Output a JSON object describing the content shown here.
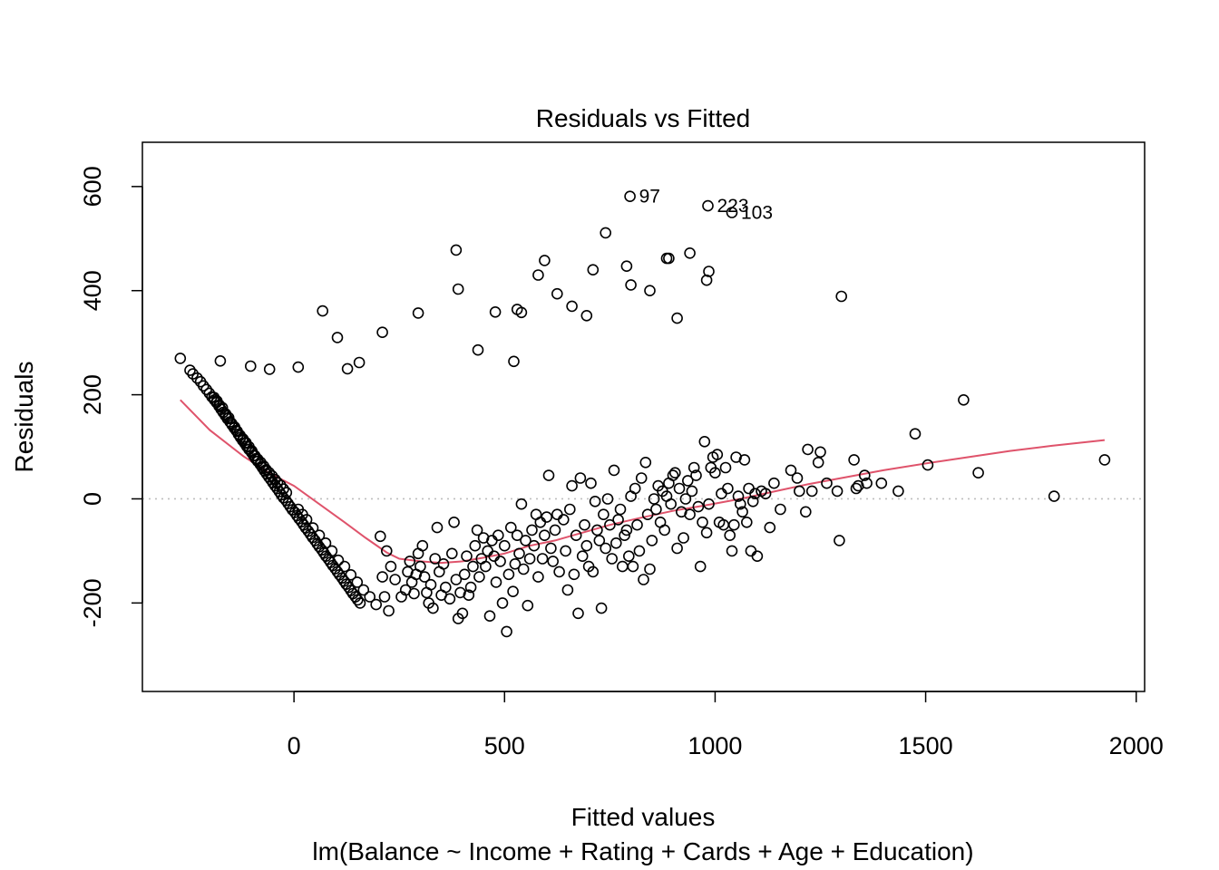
{
  "chart_data": {
    "type": "scatter",
    "title": "Residuals vs Fitted",
    "xlabel": "Fitted values",
    "sublabel": "lm(Balance ~ Income + Rating + Cards + Age + Education)",
    "ylabel": "Residuals",
    "xlim": [
      -360,
      2020
    ],
    "ylim": [
      -370,
      685
    ],
    "xticks": [
      0,
      500,
      1000,
      1500,
      2000
    ],
    "xtick_labels": [
      "0",
      "500",
      "1000",
      "1500",
      "2000"
    ],
    "yticks": [
      -200,
      0,
      200,
      400,
      600
    ],
    "ytick_labels": [
      "-200",
      "0",
      "200",
      "400",
      "600"
    ],
    "grid": false,
    "reference_line_y": 0,
    "colors": {
      "points": "#000000",
      "smooth": "#DF536B",
      "reference": "#BEBEBE"
    },
    "point_labels": [
      {
        "text": "97",
        "x": 798,
        "y": 581
      },
      {
        "text": "223",
        "x": 983,
        "y": 563
      },
      {
        "text": "103",
        "x": 1040,
        "y": 550
      }
    ],
    "points": [
      [
        -270,
        270
      ],
      [
        -247,
        247
      ],
      [
        -240,
        240
      ],
      [
        -230,
        232
      ],
      [
        -222,
        225
      ],
      [
        -215,
        217
      ],
      [
        -208,
        210
      ],
      [
        -201,
        203
      ],
      [
        -195,
        196
      ],
      [
        -189,
        190
      ],
      [
        -184,
        185
      ],
      [
        -178,
        178
      ],
      [
        -173,
        172
      ],
      [
        -168,
        166
      ],
      [
        -163,
        160
      ],
      [
        -158,
        154
      ],
      [
        -152,
        148
      ],
      [
        -147,
        142
      ],
      [
        -142,
        136
      ],
      [
        -137,
        131
      ],
      [
        -132,
        124
      ],
      [
        -127,
        118
      ],
      [
        -122,
        112
      ],
      [
        -117,
        107
      ],
      [
        -112,
        101
      ],
      [
        -107,
        95
      ],
      [
        -101,
        89
      ],
      [
        -96,
        83
      ],
      [
        -91,
        77
      ],
      [
        -86,
        72
      ],
      [
        -80,
        66
      ],
      [
        -75,
        60
      ],
      [
        -70,
        54
      ],
      [
        -65,
        48
      ],
      [
        -60,
        42
      ],
      [
        -55,
        37
      ],
      [
        -50,
        31
      ],
      [
        -45,
        25
      ],
      [
        -40,
        20
      ],
      [
        -35,
        14
      ],
      [
        -30,
        8
      ],
      [
        -25,
        2
      ],
      [
        -19,
        -3
      ],
      [
        -14,
        -9
      ],
      [
        -9,
        -15
      ],
      [
        -4,
        -21
      ],
      [
        2,
        -26
      ],
      [
        7,
        -32
      ],
      [
        12,
        -38
      ],
      [
        18,
        -44
      ],
      [
        23,
        -50
      ],
      [
        28,
        -56
      ],
      [
        34,
        -62
      ],
      [
        39,
        -68
      ],
      [
        44,
        -74
      ],
      [
        50,
        -80
      ],
      [
        55,
        -86
      ],
      [
        60,
        -92
      ],
      [
        66,
        -98
      ],
      [
        71,
        -104
      ],
      [
        76,
        -110
      ],
      [
        82,
        -116
      ],
      [
        87,
        -122
      ],
      [
        92,
        -128
      ],
      [
        98,
        -134
      ],
      [
        103,
        -140
      ],
      [
        108,
        -146
      ],
      [
        114,
        -152
      ],
      [
        119,
        -158
      ],
      [
        124,
        -164
      ],
      [
        130,
        -170
      ],
      [
        135,
        -176
      ],
      [
        140,
        -182
      ],
      [
        146,
        -188
      ],
      [
        151,
        -194
      ],
      [
        157,
        -200
      ],
      [
        -190,
        195
      ],
      [
        -183,
        188
      ],
      [
        -177,
        180
      ],
      [
        -170,
        175
      ],
      [
        -162,
        163
      ],
      [
        -155,
        156
      ],
      [
        -148,
        145
      ],
      [
        -141,
        138
      ],
      [
        -135,
        130
      ],
      [
        -128,
        122
      ],
      [
        -121,
        115
      ],
      [
        -114,
        108
      ],
      [
        -107,
        100
      ],
      [
        -100,
        92
      ],
      [
        -93,
        83
      ],
      [
        -86,
        76
      ],
      [
        -79,
        70
      ],
      [
        -72,
        63
      ],
      [
        -66,
        56
      ],
      [
        -59,
        50
      ],
      [
        -52,
        44
      ],
      [
        -45,
        37
      ],
      [
        -39,
        31
      ],
      [
        -32,
        26
      ],
      [
        -25,
        19
      ],
      [
        -18,
        12
      ],
      [
        10,
        -20
      ],
      [
        20,
        -30
      ],
      [
        30,
        -40
      ],
      [
        45,
        -56
      ],
      [
        60,
        -70
      ],
      [
        75,
        -85
      ],
      [
        90,
        -100
      ],
      [
        105,
        -118
      ],
      [
        120,
        -130
      ],
      [
        135,
        -146
      ],
      [
        150,
        -160
      ],
      [
        165,
        -175
      ],
      [
        180,
        -188
      ],
      [
        195,
        -203
      ],
      [
        -175,
        265
      ],
      [
        -103,
        255
      ],
      [
        -58,
        249
      ],
      [
        10,
        253
      ],
      [
        68,
        361
      ],
      [
        103,
        310
      ],
      [
        127,
        250
      ],
      [
        155,
        262
      ],
      [
        210,
        320
      ],
      [
        295,
        357
      ],
      [
        385,
        478
      ],
      [
        390,
        403
      ],
      [
        437,
        286
      ],
      [
        478,
        359
      ],
      [
        522,
        264
      ],
      [
        530,
        364
      ],
      [
        540,
        358
      ],
      [
        580,
        430
      ],
      [
        595,
        458
      ],
      [
        625,
        394
      ],
      [
        660,
        370
      ],
      [
        695,
        352
      ],
      [
        710,
        440
      ],
      [
        740,
        511
      ],
      [
        790,
        447
      ],
      [
        800,
        411
      ],
      [
        845,
        400
      ],
      [
        885,
        462
      ],
      [
        890,
        462
      ],
      [
        910,
        347
      ],
      [
        940,
        472
      ],
      [
        980,
        420
      ],
      [
        985,
        437
      ],
      [
        1300,
        389
      ],
      [
        798,
        581
      ],
      [
        983,
        563
      ],
      [
        1040,
        550
      ],
      [
        205,
        -72
      ],
      [
        210,
        -150
      ],
      [
        215,
        -188
      ],
      [
        220,
        -100
      ],
      [
        225,
        -215
      ],
      [
        230,
        -130
      ],
      [
        240,
        -155
      ],
      [
        255,
        -188
      ],
      [
        265,
        -175
      ],
      [
        270,
        -140
      ],
      [
        275,
        -120
      ],
      [
        280,
        -160
      ],
      [
        285,
        -182
      ],
      [
        290,
        -145
      ],
      [
        295,
        -105
      ],
      [
        300,
        -130
      ],
      [
        305,
        -90
      ],
      [
        310,
        -150
      ],
      [
        315,
        -180
      ],
      [
        320,
        -200
      ],
      [
        325,
        -165
      ],
      [
        330,
        -210
      ],
      [
        335,
        -115
      ],
      [
        340,
        -55
      ],
      [
        345,
        -140
      ],
      [
        350,
        -185
      ],
      [
        355,
        -125
      ],
      [
        360,
        -170
      ],
      [
        370,
        -192
      ],
      [
        375,
        -105
      ],
      [
        380,
        -45
      ],
      [
        385,
        -155
      ],
      [
        390,
        -230
      ],
      [
        395,
        -180
      ],
      [
        400,
        -220
      ],
      [
        405,
        -145
      ],
      [
        410,
        -110
      ],
      [
        415,
        -185
      ],
      [
        420,
        -170
      ],
      [
        425,
        -130
      ],
      [
        430,
        -90
      ],
      [
        435,
        -60
      ],
      [
        440,
        -150
      ],
      [
        445,
        -115
      ],
      [
        450,
        -75
      ],
      [
        455,
        -130
      ],
      [
        460,
        -100
      ],
      [
        465,
        -225
      ],
      [
        470,
        -80
      ],
      [
        475,
        -110
      ],
      [
        480,
        -160
      ],
      [
        485,
        -70
      ],
      [
        490,
        -120
      ],
      [
        495,
        -200
      ],
      [
        500,
        -90
      ],
      [
        505,
        -255
      ],
      [
        510,
        -145
      ],
      [
        515,
        -55
      ],
      [
        520,
        -178
      ],
      [
        525,
        -125
      ],
      [
        530,
        -70
      ],
      [
        535,
        -105
      ],
      [
        540,
        -10
      ],
      [
        545,
        -135
      ],
      [
        550,
        -80
      ],
      [
        555,
        -205
      ],
      [
        560,
        -115
      ],
      [
        565,
        -60
      ],
      [
        570,
        -90
      ],
      [
        575,
        -30
      ],
      [
        580,
        -150
      ],
      [
        585,
        -45
      ],
      [
        590,
        -115
      ],
      [
        595,
        -70
      ],
      [
        600,
        -35
      ],
      [
        605,
        45
      ],
      [
        610,
        -95
      ],
      [
        615,
        -120
      ],
      [
        620,
        -60
      ],
      [
        625,
        -30
      ],
      [
        630,
        -140
      ],
      [
        640,
        -40
      ],
      [
        645,
        -100
      ],
      [
        650,
        -175
      ],
      [
        655,
        -20
      ],
      [
        660,
        25
      ],
      [
        665,
        -145
      ],
      [
        670,
        -70
      ],
      [
        675,
        -220
      ],
      [
        680,
        40
      ],
      [
        685,
        -110
      ],
      [
        690,
        -50
      ],
      [
        695,
        -90
      ],
      [
        700,
        -130
      ],
      [
        705,
        30
      ],
      [
        710,
        -140
      ],
      [
        715,
        -5
      ],
      [
        720,
        -60
      ],
      [
        725,
        -80
      ],
      [
        730,
        -210
      ],
      [
        735,
        -30
      ],
      [
        740,
        -95
      ],
      [
        745,
        0
      ],
      [
        750,
        -50
      ],
      [
        755,
        -115
      ],
      [
        760,
        55
      ],
      [
        765,
        -85
      ],
      [
        770,
        -40
      ],
      [
        775,
        -20
      ],
      [
        780,
        -130
      ],
      [
        785,
        -70
      ],
      [
        790,
        -60
      ],
      [
        795,
        -110
      ],
      [
        800,
        5
      ],
      [
        805,
        -130
      ],
      [
        810,
        20
      ],
      [
        815,
        -50
      ],
      [
        820,
        -100
      ],
      [
        825,
        40
      ],
      [
        830,
        -155
      ],
      [
        835,
        70
      ],
      [
        840,
        -30
      ],
      [
        845,
        -135
      ],
      [
        850,
        -80
      ],
      [
        855,
        0
      ],
      [
        860,
        -20
      ],
      [
        865,
        25
      ],
      [
        870,
        -45
      ],
      [
        875,
        15
      ],
      [
        880,
        -60
      ],
      [
        885,
        5
      ],
      [
        890,
        30
      ],
      [
        895,
        -10
      ],
      [
        900,
        45
      ],
      [
        905,
        50
      ],
      [
        910,
        -95
      ],
      [
        915,
        20
      ],
      [
        920,
        -25
      ],
      [
        925,
        -75
      ],
      [
        930,
        0
      ],
      [
        935,
        35
      ],
      [
        940,
        -30
      ],
      [
        945,
        15
      ],
      [
        950,
        60
      ],
      [
        955,
        45
      ],
      [
        960,
        -15
      ],
      [
        965,
        -130
      ],
      [
        970,
        -45
      ],
      [
        975,
        110
      ],
      [
        980,
        -65
      ],
      [
        985,
        -10
      ],
      [
        990,
        60
      ],
      [
        995,
        80
      ],
      [
        1000,
        50
      ],
      [
        1005,
        85
      ],
      [
        1010,
        -45
      ],
      [
        1015,
        10
      ],
      [
        1020,
        -50
      ],
      [
        1025,
        60
      ],
      [
        1030,
        20
      ],
      [
        1035,
        -70
      ],
      [
        1040,
        -100
      ],
      [
        1045,
        -50
      ],
      [
        1050,
        80
      ],
      [
        1055,
        5
      ],
      [
        1060,
        -10
      ],
      [
        1065,
        -25
      ],
      [
        1070,
        75
      ],
      [
        1075,
        -45
      ],
      [
        1080,
        20
      ],
      [
        1085,
        -100
      ],
      [
        1090,
        -5
      ],
      [
        1095,
        10
      ],
      [
        1100,
        -110
      ],
      [
        1110,
        15
      ],
      [
        1120,
        10
      ],
      [
        1130,
        -55
      ],
      [
        1140,
        30
      ],
      [
        1155,
        -20
      ],
      [
        1180,
        55
      ],
      [
        1195,
        40
      ],
      [
        1200,
        15
      ],
      [
        1215,
        -25
      ],
      [
        1220,
        95
      ],
      [
        1230,
        15
      ],
      [
        1245,
        70
      ],
      [
        1250,
        90
      ],
      [
        1265,
        30
      ],
      [
        1290,
        15
      ],
      [
        1295,
        -80
      ],
      [
        1330,
        75
      ],
      [
        1335,
        20
      ],
      [
        1340,
        25
      ],
      [
        1355,
        45
      ],
      [
        1360,
        30
      ],
      [
        1395,
        30
      ],
      [
        1435,
        15
      ],
      [
        1475,
        125
      ],
      [
        1505,
        65
      ],
      [
        1590,
        190
      ],
      [
        1625,
        50
      ],
      [
        1805,
        5
      ],
      [
        1925,
        75
      ]
    ],
    "smooth_line": [
      [
        -270,
        190
      ],
      [
        -200,
        132
      ],
      [
        -120,
        82
      ],
      [
        -60,
        50
      ],
      [
        0,
        25
      ],
      [
        60,
        -10
      ],
      [
        120,
        -45
      ],
      [
        170,
        -75
      ],
      [
        220,
        -103
      ],
      [
        250,
        -115
      ],
      [
        300,
        -120
      ],
      [
        350,
        -123
      ],
      [
        400,
        -120
      ],
      [
        450,
        -113
      ],
      [
        500,
        -105
      ],
      [
        560,
        -90
      ],
      [
        620,
        -80
      ],
      [
        680,
        -66
      ],
      [
        750,
        -50
      ],
      [
        820,
        -37
      ],
      [
        900,
        -23
      ],
      [
        980,
        -12
      ],
      [
        1060,
        0
      ],
      [
        1140,
        14
      ],
      [
        1220,
        28
      ],
      [
        1300,
        40
      ],
      [
        1400,
        55
      ],
      [
        1500,
        68
      ],
      [
        1600,
        80
      ],
      [
        1700,
        92
      ],
      [
        1800,
        102
      ],
      [
        1925,
        113
      ]
    ]
  }
}
